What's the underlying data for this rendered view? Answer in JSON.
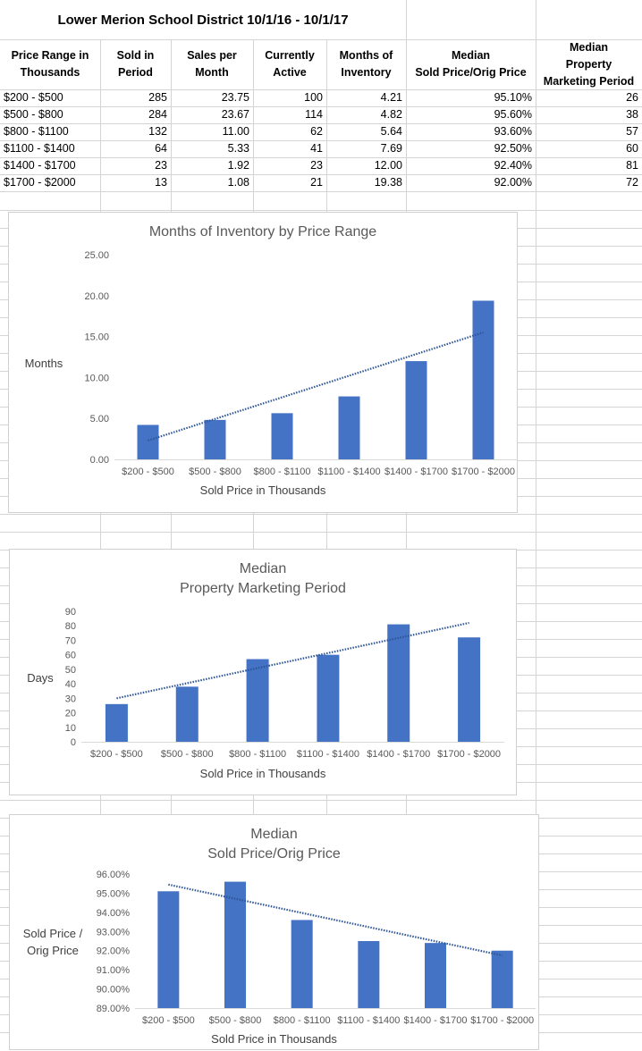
{
  "sheet": {
    "title": "Lower Merion School District 10/1/16 - 10/1/17",
    "headers": [
      [
        "Price Range in",
        "Thousands"
      ],
      [
        "Sold in",
        "Period"
      ],
      [
        "Sales per",
        "Month"
      ],
      [
        "Currently",
        "Active"
      ],
      [
        "Months of",
        "Inventory"
      ],
      [
        "Median",
        "Sold Price/Orig Price"
      ],
      [
        "Median",
        "Property",
        "Marketing Period"
      ]
    ],
    "rows": [
      [
        "$200 - $500",
        "285",
        "23.75",
        "100",
        "4.21",
        "95.10%",
        "26"
      ],
      [
        "$500 - $800",
        "284",
        "23.67",
        "114",
        "4.82",
        "95.60%",
        "38"
      ],
      [
        "$800 - $1100",
        "132",
        "11.00",
        "62",
        "5.64",
        "93.60%",
        "57"
      ],
      [
        "$1100 - $1400",
        "64",
        "5.33",
        "41",
        "7.69",
        "92.50%",
        "60"
      ],
      [
        "$1400 - $1700",
        "23",
        "1.92",
        "23",
        "12.00",
        "92.40%",
        "81"
      ],
      [
        "$1700 - $2000",
        "13",
        "1.08",
        "21",
        "19.38",
        "92.00%",
        "72"
      ]
    ]
  },
  "colors": {
    "bar": "#4472c4",
    "trend": "#2e5597",
    "axis_text": "#595959",
    "gridline": "#d9d9d9"
  },
  "chart_data": [
    {
      "type": "bar",
      "title": "Months of Inventory by Price Range",
      "title_lines": [
        "Months of Inventory by Price Range"
      ],
      "categories": [
        "$200 - $500",
        "$500 - $800",
        "$800 - $1100",
        "$1100 - $1400",
        "$1400 - $1700",
        "$1700 - $2000"
      ],
      "values": [
        4.21,
        4.82,
        5.64,
        7.69,
        12.0,
        19.38
      ],
      "trendline": {
        "type": "linear",
        "start": 2.3,
        "end": 15.5
      },
      "xlabel": "Sold Price in Thousands",
      "ylabel_lines": [
        "Months"
      ],
      "ylim": [
        0,
        25
      ],
      "yticks": [
        0,
        5,
        10,
        15,
        20,
        25
      ],
      "ytick_labels": [
        "0.00",
        "5.00",
        "10.00",
        "15.00",
        "20.00",
        "25.00"
      ],
      "grid": false,
      "legend": "none"
    },
    {
      "type": "bar",
      "title": "Median Property Marketing Period",
      "title_lines": [
        "Median",
        "Property Marketing Period"
      ],
      "categories": [
        "$200 - $500",
        "$500 - $800",
        "$800 - $1100",
        "$1100 - $1400",
        "$1400 - $1700",
        "$1700 - $2000"
      ],
      "values": [
        26,
        38,
        57,
        60,
        81,
        72
      ],
      "trendline": {
        "type": "linear",
        "start": 30,
        "end": 82
      },
      "xlabel": "Sold Price in Thousands",
      "ylabel_lines": [
        "Days"
      ],
      "ylim": [
        0,
        90
      ],
      "yticks": [
        0,
        10,
        20,
        30,
        40,
        50,
        60,
        70,
        80,
        90
      ],
      "ytick_labels": [
        "0",
        "10",
        "20",
        "30",
        "40",
        "50",
        "60",
        "70",
        "80",
        "90"
      ],
      "grid": false,
      "legend": "none"
    },
    {
      "type": "bar",
      "title": "Median Sold Price/Orig Price",
      "title_lines": [
        "Median",
        "Sold Price/Orig Price"
      ],
      "categories": [
        "$200 - $500",
        "$500 - $800",
        "$800 - $1100",
        "$1100 - $1400",
        "$1400 - $1700",
        "$1700 - $2000"
      ],
      "values": [
        95.1,
        95.6,
        93.6,
        92.5,
        92.4,
        92.0
      ],
      "trendline": {
        "type": "linear",
        "start": 95.45,
        "end": 91.75
      },
      "xlabel": "Sold Price in Thousands",
      "ylabel_lines": [
        "Sold Price /",
        "Orig Price"
      ],
      "ylim": [
        89,
        96
      ],
      "yticks": [
        89,
        90,
        91,
        92,
        93,
        94,
        95,
        96
      ],
      "ytick_labels": [
        "89.00%",
        "90.00%",
        "91.00%",
        "92.00%",
        "93.00%",
        "94.00%",
        "95.00%",
        "96.00%"
      ],
      "grid": false,
      "legend": "none"
    }
  ]
}
